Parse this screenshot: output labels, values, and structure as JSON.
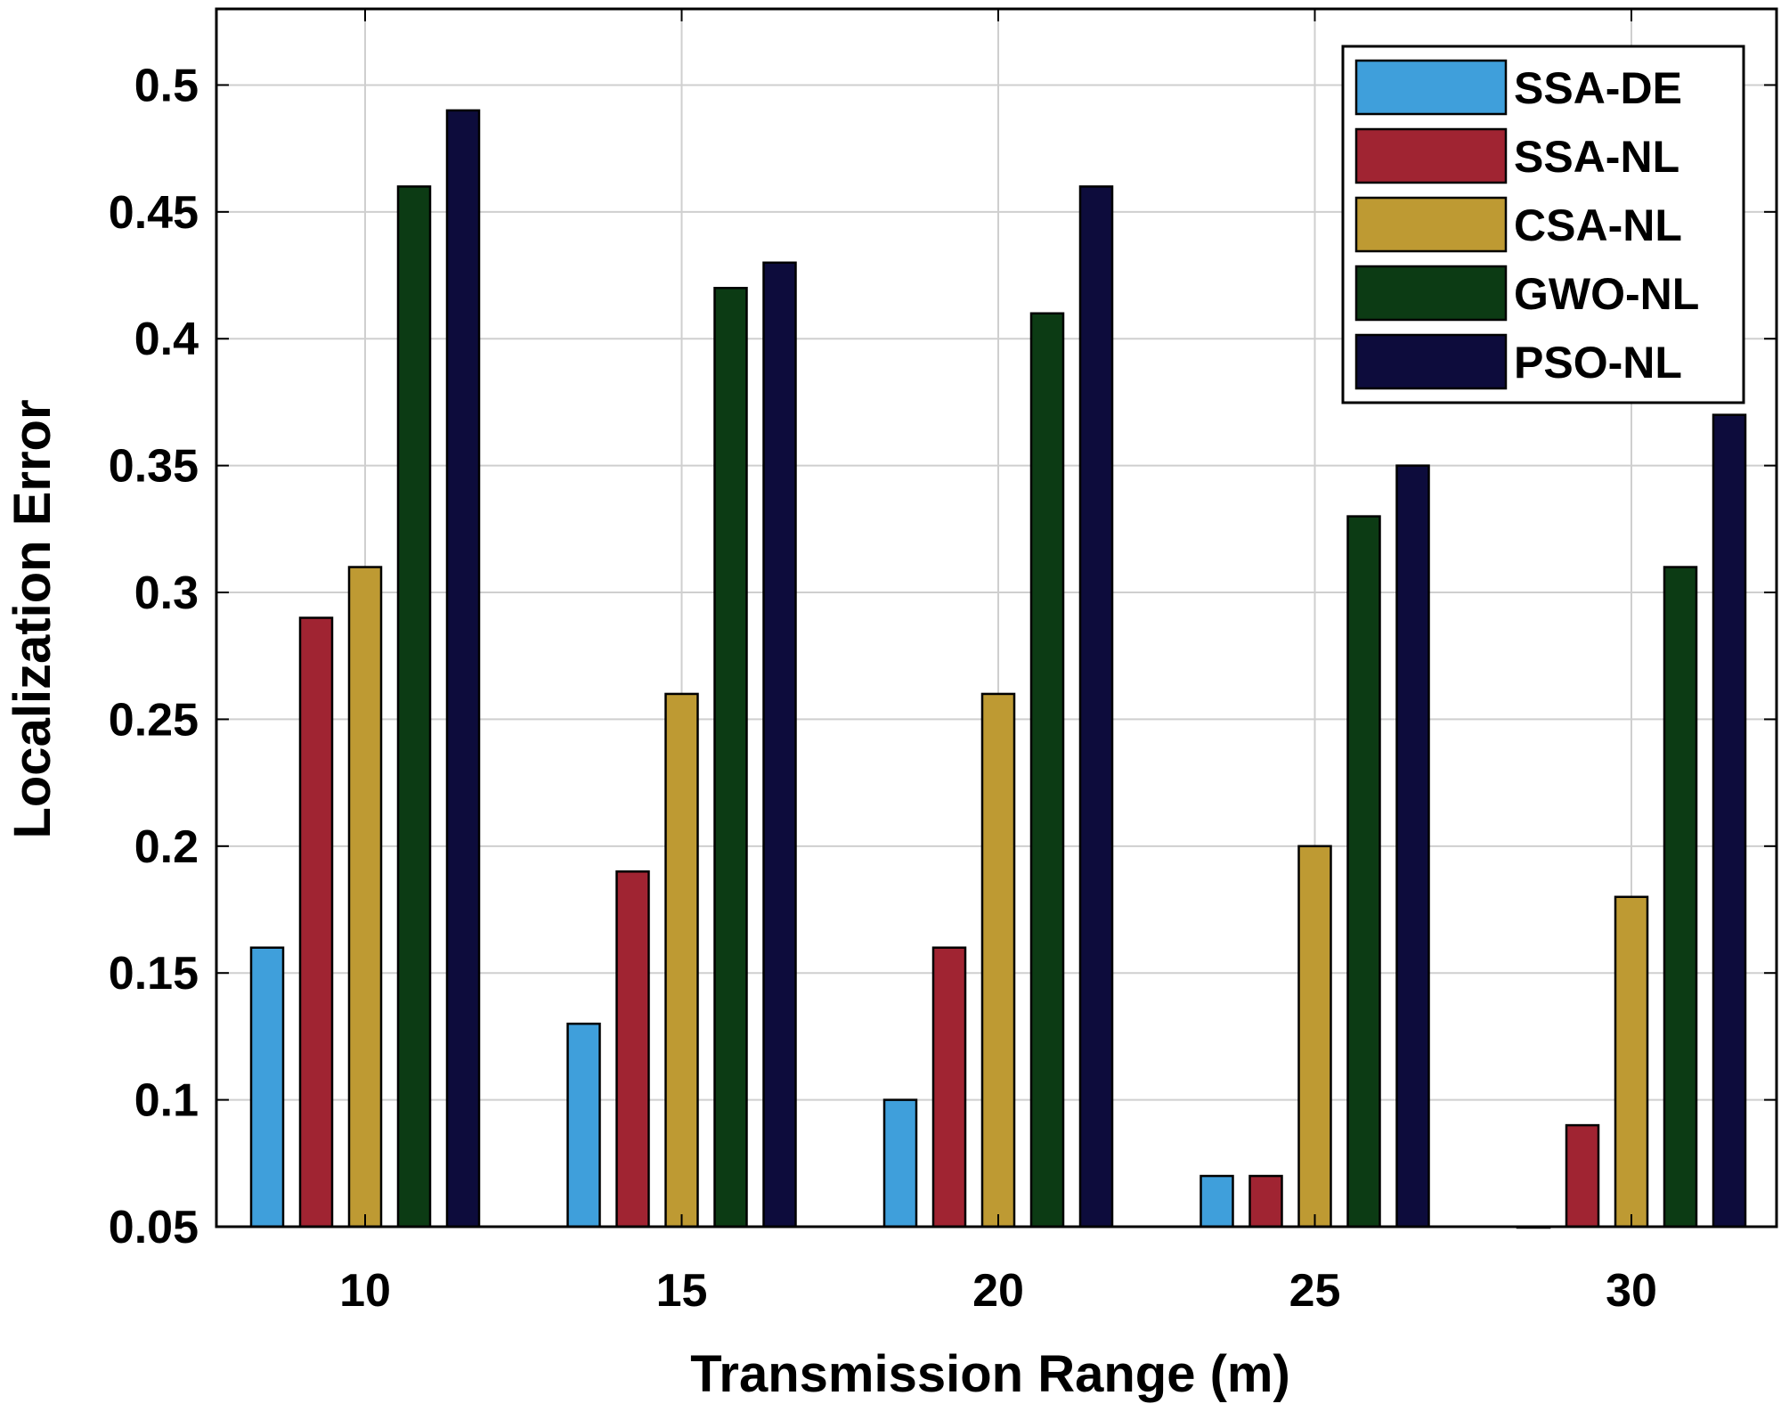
{
  "chart_data": {
    "type": "bar",
    "title": "",
    "xlabel": "Transmission Range (m)",
    "ylabel": "Localization Error",
    "categories": [
      "10",
      "15",
      "20",
      "25",
      "30"
    ],
    "ylim": [
      0.05,
      0.53
    ],
    "yticks": [
      0.05,
      0.1,
      0.15,
      0.2,
      0.25,
      0.3,
      0.35,
      0.4,
      0.45,
      0.5
    ],
    "ytick_labels": [
      "0.05",
      "0.1",
      "0.15",
      "0.2",
      "0.25",
      "0.3",
      "0.35",
      "0.4",
      "0.45",
      "0.5"
    ],
    "grid": true,
    "legend_position": "top-right",
    "series": [
      {
        "name": "SSA-DE",
        "color": "#3f9fdb",
        "values": [
          0.16,
          0.13,
          0.1,
          0.07,
          0.05
        ]
      },
      {
        "name": "SSA-NL",
        "color": "#a02432",
        "values": [
          0.29,
          0.19,
          0.16,
          0.07,
          0.09
        ]
      },
      {
        "name": "CSA-NL",
        "color": "#be9a33",
        "values": [
          0.31,
          0.26,
          0.26,
          0.2,
          0.18
        ]
      },
      {
        "name": "GWO-NL",
        "color": "#0c3b14",
        "values": [
          0.46,
          0.42,
          0.41,
          0.33,
          0.31
        ]
      },
      {
        "name": "PSO-NL",
        "color": "#0d0c3c",
        "values": [
          0.49,
          0.43,
          0.46,
          0.35,
          0.37
        ]
      }
    ]
  }
}
